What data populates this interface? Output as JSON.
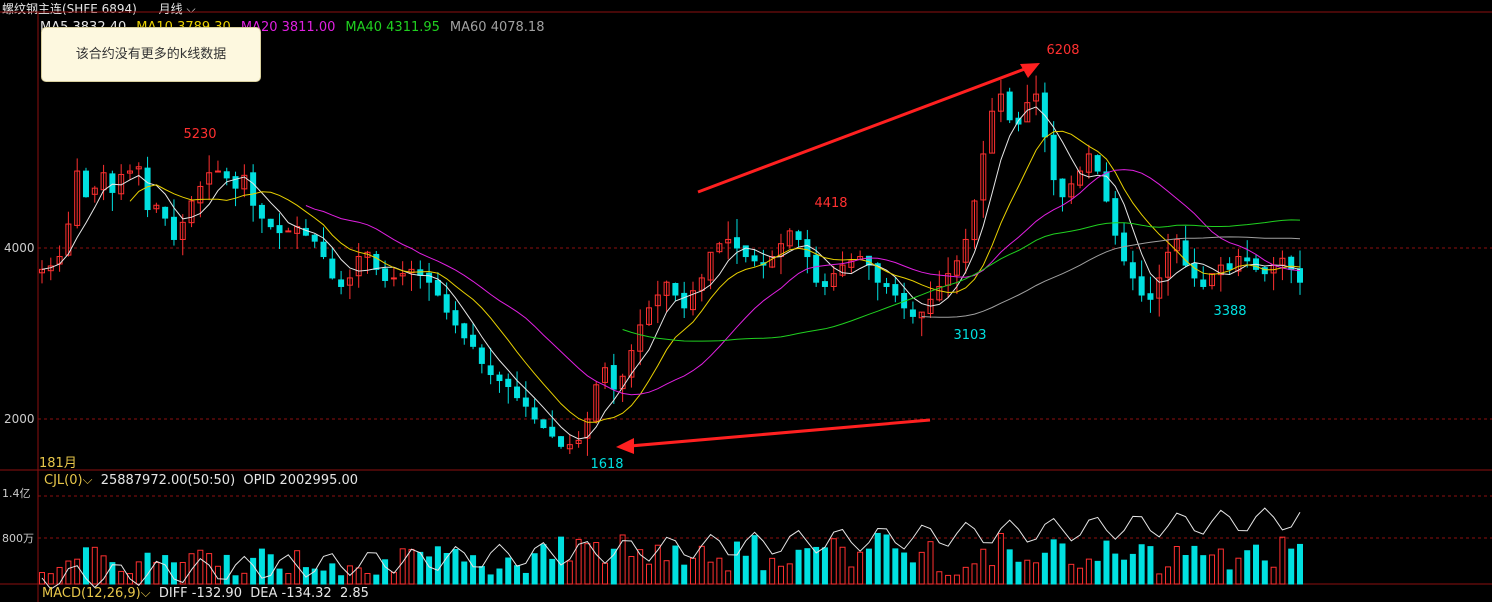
{
  "header": {
    "instrument": "螺纹钢主连(SHFE 6894)",
    "period": "月线",
    "period_icon": "chevron-down-icon"
  },
  "ma_legend": [
    {
      "label": "MA5",
      "value": "3832.40",
      "color": "#e6e6e6"
    },
    {
      "label": "MA10",
      "value": "3789.30",
      "color": "#e8d000"
    },
    {
      "label": "MA20",
      "value": "3811.00",
      "color": "#e020e0"
    },
    {
      "label": "MA40",
      "value": "4311.95",
      "color": "#20d020"
    },
    {
      "label": "MA60",
      "value": "4078.18",
      "color": "#a0a0a0"
    }
  ],
  "tooltip": "该合约没有更多的k线数据",
  "bar_count": "181月",
  "volume_legend": {
    "label": "CJL(0)",
    "value": "25887972.00(50:50)",
    "opid": "OPID 2002995.00"
  },
  "volume_axis": {
    "top": "1.4亿",
    "mid": "800万"
  },
  "macd_legend": {
    "label": "MACD(12,26,9)",
    "diff": "DIFF -132.90",
    "dea": "DEA -134.32",
    "macd": "2.85"
  },
  "colors": {
    "up": "#ff3030",
    "down": "#00e0e0",
    "grid": "#8b1010",
    "arrow": "#ff2020"
  },
  "chart_data": {
    "type": "candlestick",
    "y_ticks": [
      4000,
      2000
    ],
    "ylim": [
      1500,
      6300
    ],
    "annotations": [
      {
        "text": "5230",
        "value": 5230,
        "color": "#ff3030"
      },
      {
        "text": "4418",
        "value": 4418,
        "color": "#ff3030"
      },
      {
        "text": "6208",
        "value": 6208,
        "color": "#ff3030"
      },
      {
        "text": "1618",
        "value": 1618,
        "color": "#00e0e0"
      },
      {
        "text": "3103",
        "value": 3103,
        "color": "#00e0e0"
      },
      {
        "text": "3388",
        "value": 3388,
        "color": "#00e0e0"
      }
    ],
    "close_path": [
      3750,
      3790,
      3900,
      4280,
      4900,
      4600,
      4700,
      4880,
      4650,
      4860,
      4900,
      4950,
      4450,
      4500,
      4350,
      4100,
      4300,
      4550,
      4720,
      4880,
      4900,
      4820,
      4700,
      4850,
      4500,
      4350,
      4250,
      4180,
      4200,
      4250,
      4150,
      4080,
      3900,
      3650,
      3550,
      3650,
      3900,
      3950,
      3750,
      3620,
      3650,
      3700,
      3750,
      3680,
      3600,
      3450,
      3250,
      3100,
      2950,
      2850,
      2650,
      2520,
      2450,
      2380,
      2250,
      2150,
      2000,
      1900,
      1800,
      1680,
      1700,
      1750,
      2000,
      2400,
      2600,
      2350,
      2500,
      2800,
      3100,
      3300,
      3450,
      3600,
      3450,
      3300,
      3500,
      3650,
      3950,
      4050,
      4100,
      4000,
      3900,
      3850,
      3800,
      3900,
      4050,
      4200,
      4100,
      3900,
      3600,
      3550,
      3700,
      3800,
      3850,
      3900,
      3800,
      3600,
      3550,
      3450,
      3300,
      3200,
      3250,
      3400,
      3550,
      3700,
      3850,
      4100,
      4550,
      5100,
      5600,
      5800,
      5500,
      5450,
      5700,
      5800,
      5300,
      4800,
      4600,
      4750,
      4900,
      5100,
      4900,
      4550,
      4150,
      3850,
      3650,
      3450,
      3400,
      3650,
      3950,
      4100,
      3800,
      3650,
      3550,
      3700,
      3800,
      3750,
      3900,
      3850,
      3750,
      3700,
      3800,
      3880,
      3750,
      3600
    ]
  }
}
